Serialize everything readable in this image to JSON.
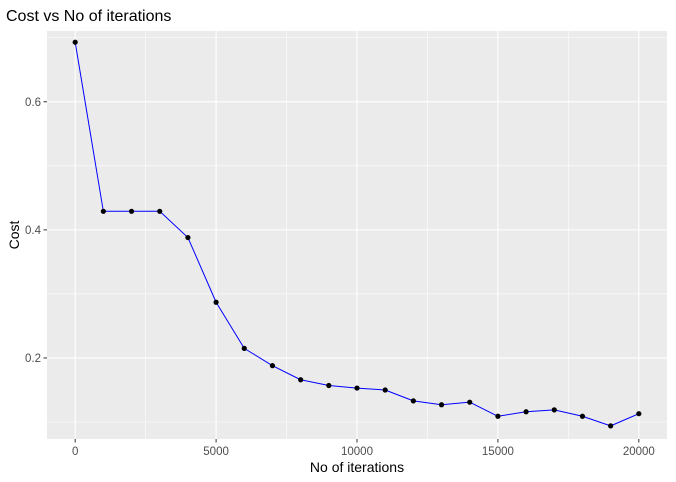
{
  "chart_data": {
    "type": "line",
    "title": "Cost vs No of iterations",
    "xlabel": "No of iterations",
    "ylabel": "Cost",
    "xlim": [
      -1000,
      21000
    ],
    "ylim": [
      0.0735,
      0.7105
    ],
    "x_ticks": [
      0,
      5000,
      10000,
      15000,
      20000
    ],
    "x_tick_labels": [
      "0",
      "5000",
      "10000",
      "15000",
      "20000"
    ],
    "y_ticks": [
      0.2,
      0.4,
      0.6
    ],
    "y_tick_labels": [
      "0.2",
      "0.4",
      "0.6"
    ],
    "grid": true,
    "series": [
      {
        "x": [
          0,
          1000,
          2000,
          3000,
          4000,
          5000,
          6000,
          7000,
          8000,
          9000,
          10000,
          11000,
          12000,
          13000,
          14000,
          15000,
          16000,
          17000,
          18000,
          19000,
          20000
        ],
        "values": [
          0.693,
          0.429,
          0.429,
          0.429,
          0.388,
          0.287,
          0.215,
          0.188,
          0.166,
          0.157,
          0.153,
          0.15,
          0.133,
          0.127,
          0.131,
          0.109,
          0.116,
          0.119,
          0.109,
          0.094,
          0.113
        ]
      }
    ],
    "colors": {
      "panel": "#ebebeb",
      "grid_major": "#ffffff",
      "line": "#0000ff",
      "point": "#000000"
    }
  }
}
